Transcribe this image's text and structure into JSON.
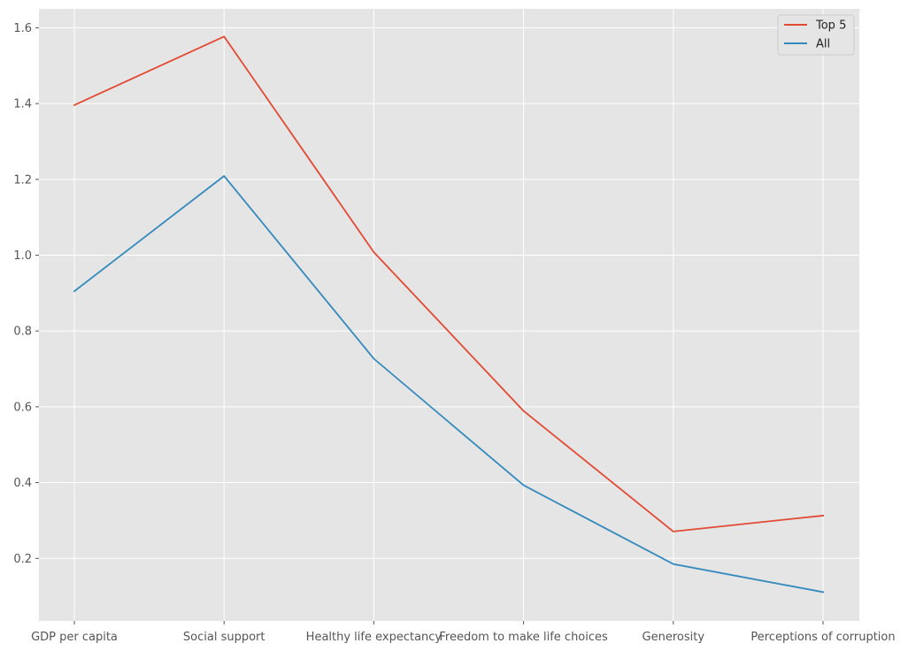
{
  "chart_data": {
    "type": "line",
    "title": "",
    "xlabel": "",
    "ylabel": "",
    "categories": [
      "GDP per capita",
      "Social support",
      "Healthy life expectancy",
      "Freedom to make life choices",
      "Generosity",
      "Perceptions of corruption"
    ],
    "ylim": [
      0.035,
      1.65
    ],
    "yticks": [
      "0.2",
      "0.4",
      "0.6",
      "0.8",
      "1.0",
      "1.2",
      "1.4",
      "1.6"
    ],
    "grid": true,
    "legend_position": "top-right",
    "series": [
      {
        "name": "Top 5",
        "color": "#E24A33",
        "values": [
          1.396,
          1.577,
          1.008,
          0.589,
          0.271,
          0.313
        ]
      },
      {
        "name": "All",
        "color": "#348ABD",
        "values": [
          0.905,
          1.209,
          0.727,
          0.393,
          0.185,
          0.111
        ]
      }
    ],
    "colors": {
      "background": "#E5E5E5",
      "grid": "#FFFFFF",
      "tick_text": "#555555"
    }
  }
}
